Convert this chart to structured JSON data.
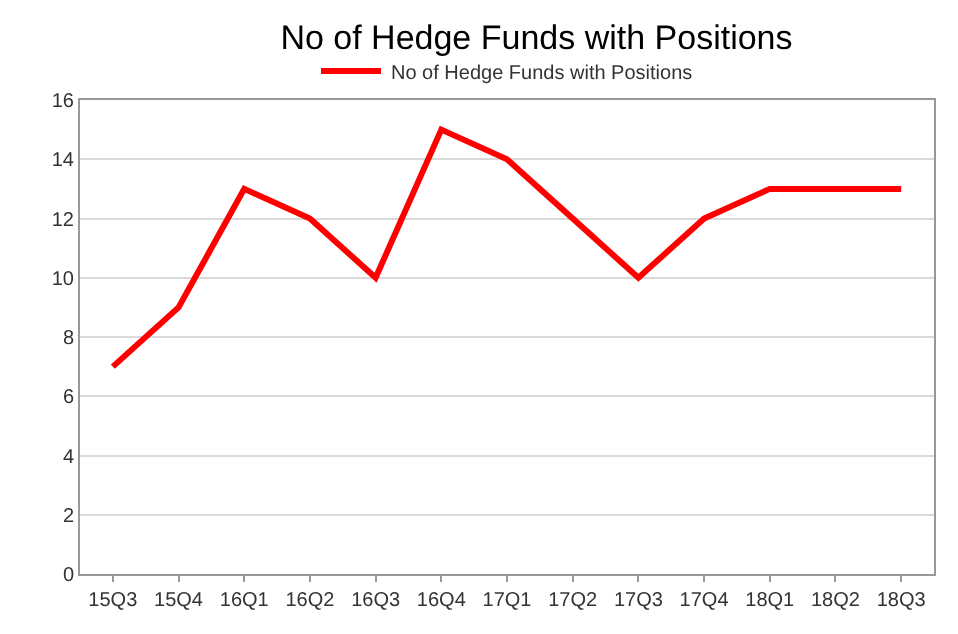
{
  "chart_data": {
    "type": "line",
    "title": "No of Hedge Funds with Positions",
    "categories": [
      "15Q3",
      "15Q4",
      "16Q1",
      "16Q2",
      "16Q3",
      "16Q4",
      "17Q1",
      "17Q2",
      "17Q3",
      "17Q4",
      "18Q1",
      "18Q2",
      "18Q3"
    ],
    "series": [
      {
        "name": "No of Hedge Funds with Positions",
        "color": "#ff0000",
        "values": [
          7,
          9,
          13,
          12,
          10,
          15,
          14,
          12,
          10,
          12,
          13,
          13,
          13
        ]
      }
    ],
    "ylim": [
      0,
      16
    ],
    "yticks": [
      0,
      2,
      4,
      6,
      8,
      10,
      12,
      14,
      16
    ],
    "grid": "y",
    "legend": "top",
    "marker": "none",
    "line_style": "solid"
  }
}
